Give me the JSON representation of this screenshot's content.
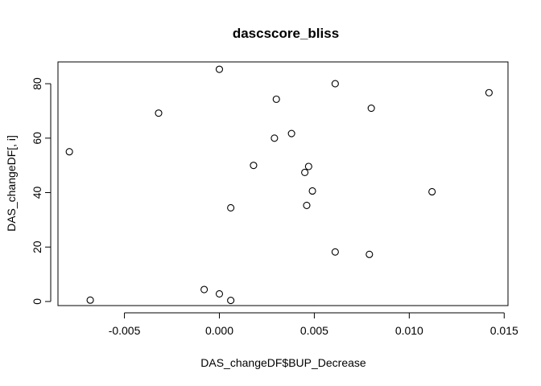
{
  "chart_data": {
    "type": "scatter",
    "title": "dascscore_bliss",
    "xlabel": "DAS_changeDF$BUP_Decrease",
    "ylabel": "DAS_changeDF[, i]",
    "xlim": [
      -0.0085,
      0.0152
    ],
    "ylim": [
      -1.5,
      88
    ],
    "xticks": [
      {
        "value": -0.005,
        "label": "-0.005"
      },
      {
        "value": 0.0,
        "label": "0.000"
      },
      {
        "value": 0.005,
        "label": "0.005"
      },
      {
        "value": 0.01,
        "label": "0.010"
      },
      {
        "value": 0.015,
        "label": "0.015"
      }
    ],
    "yticks": [
      {
        "value": 0,
        "label": "0"
      },
      {
        "value": 20,
        "label": "20"
      },
      {
        "value": 40,
        "label": "40"
      },
      {
        "value": 60,
        "label": "60"
      },
      {
        "value": 80,
        "label": "80"
      }
    ],
    "grid": false,
    "points": [
      {
        "x": -0.0079,
        "y": 55.0
      },
      {
        "x": -0.0068,
        "y": 0.5
      },
      {
        "x": -0.0032,
        "y": 69.2
      },
      {
        "x": -0.0008,
        "y": 4.4
      },
      {
        "x": 0.0,
        "y": 85.3
      },
      {
        "x": 0.0,
        "y": 2.8
      },
      {
        "x": 0.0006,
        "y": 34.4
      },
      {
        "x": 0.0006,
        "y": 0.4
      },
      {
        "x": 0.0018,
        "y": 50.0
      },
      {
        "x": 0.0029,
        "y": 60.0
      },
      {
        "x": 0.003,
        "y": 74.3
      },
      {
        "x": 0.0038,
        "y": 61.7
      },
      {
        "x": 0.0045,
        "y": 47.4
      },
      {
        "x": 0.0046,
        "y": 35.3
      },
      {
        "x": 0.0047,
        "y": 49.6
      },
      {
        "x": 0.0049,
        "y": 40.6
      },
      {
        "x": 0.0061,
        "y": 18.2
      },
      {
        "x": 0.0061,
        "y": 80.0
      },
      {
        "x": 0.0079,
        "y": 17.3
      },
      {
        "x": 0.008,
        "y": 71.0
      },
      {
        "x": 0.0112,
        "y": 40.3
      },
      {
        "x": 0.0142,
        "y": 76.7
      }
    ]
  }
}
